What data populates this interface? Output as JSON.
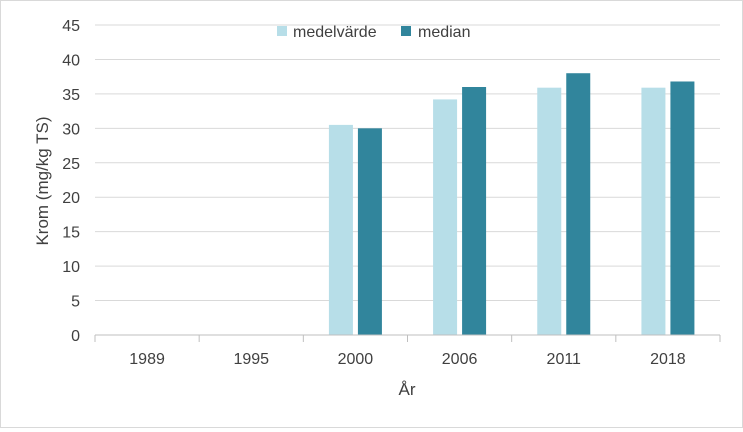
{
  "chart_data": {
    "type": "bar",
    "categories": [
      "1989",
      "1995",
      "2000",
      "2006",
      "2011",
      "2018"
    ],
    "series": [
      {
        "name": "medelvärde",
        "color": "#b7dee8",
        "values": [
          null,
          null,
          30.5,
          34.2,
          35.9,
          35.9
        ]
      },
      {
        "name": "median",
        "color": "#31859c",
        "values": [
          null,
          null,
          30.0,
          36.0,
          38.0,
          36.8
        ]
      }
    ],
    "xlabel": "År",
    "ylabel": "Krom (mg/kg TS)",
    "ylim": [
      0,
      45
    ],
    "yticks": [
      0,
      5,
      10,
      15,
      20,
      25,
      30,
      35,
      40,
      45
    ],
    "ytick_labels": [
      "0",
      "5",
      "10",
      "15",
      "20",
      "25",
      "30",
      "35",
      "40",
      "45"
    ],
    "grid": true,
    "legend_position": "top-center",
    "gridline_color": "#d9d9d9",
    "axis_color": "#bfbfbf"
  }
}
